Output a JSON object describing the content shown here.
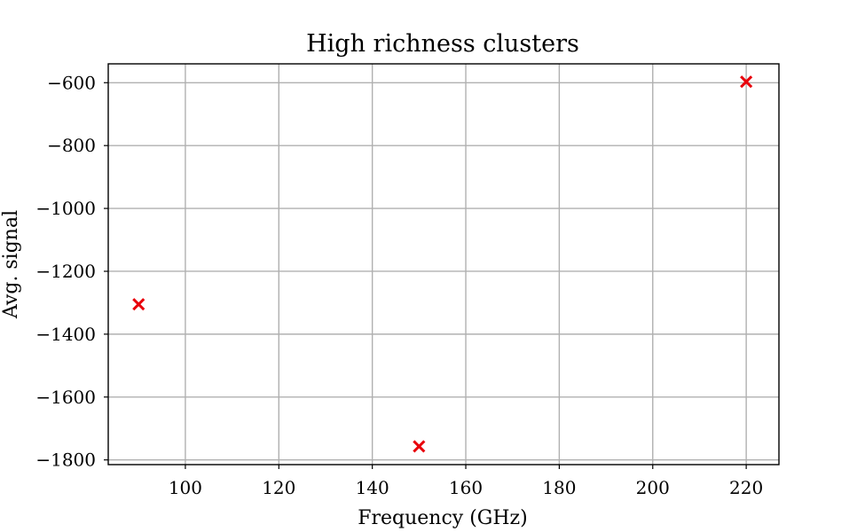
{
  "chart_data": {
    "type": "scatter",
    "title": "High richness clusters",
    "xlabel": "Frequency (GHz)",
    "ylabel": "Avg. signal",
    "xlim": [
      83.5,
      227
    ],
    "ylim": [
      -1815,
      -540
    ],
    "xticks": [
      100,
      120,
      140,
      160,
      180,
      200,
      220
    ],
    "yticks": [
      -600,
      -800,
      -1000,
      -1200,
      -1400,
      -1600,
      -1800
    ],
    "xtick_labels": [
      "100",
      "120",
      "140",
      "160",
      "180",
      "200",
      "220"
    ],
    "ytick_labels": [
      "−600",
      "−800",
      "−1000",
      "−1200",
      "−1400",
      "−1600",
      "−1800"
    ],
    "grid": true,
    "marker": "x",
    "color": "#e8000b",
    "series": [
      {
        "x": [
          90,
          150,
          220
        ],
        "y": [
          -1305,
          -1757,
          -597
        ]
      }
    ]
  }
}
